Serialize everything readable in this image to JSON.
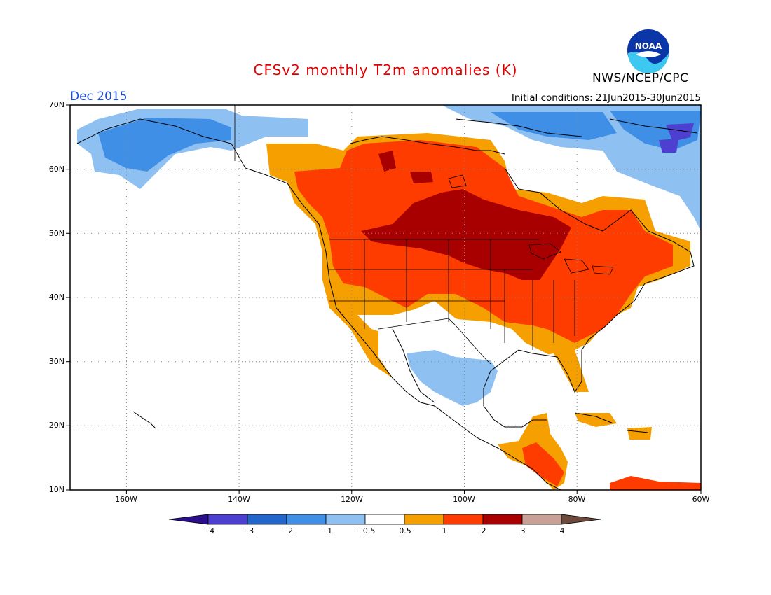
{
  "title": "CFSv2 monthly T2m anomalies (K)",
  "valid_month": "Dec 2015",
  "initial_conditions": "Initial conditions: 21Jun2015-30Jun2015",
  "agency": "NWS/NCEP/CPC",
  "logo_text": "NOAA",
  "map": {
    "region": "North America",
    "lon_range_deg": [
      -172,
      -60
    ],
    "lat_range_deg": [
      10,
      70
    ],
    "lat_ticks": [
      "70N",
      "60N",
      "50N",
      "40N",
      "30N",
      "20N",
      "10N"
    ],
    "lon_ticks": [
      "160W",
      "140W",
      "120W",
      "100W",
      "80W",
      "60W"
    ],
    "gridlines": "dotted"
  },
  "colorbar": {
    "labels": [
      "−4",
      "−3",
      "−2",
      "−1",
      "−0.5",
      "0.5",
      "1",
      "2",
      "3",
      "4"
    ],
    "colors": [
      "#2b0e8c",
      "#4d3fcf",
      "#2266cc",
      "#3f8fe6",
      "#8fc0f2",
      "#ffffff",
      "#f5a000",
      "#ff3c00",
      "#a80000",
      "#c9a095",
      "#6e4a3c"
    ]
  },
  "anomaly_regions": [
    {
      "area": "Alaska / northwest Canada",
      "category": "-1 to -0.5 / -2 to -1",
      "color": "#8fc0f2"
    },
    {
      "area": "Labrador / Baffin",
      "category": "-3 to -1",
      "color": "#3f8fe6"
    },
    {
      "area": "Northern Mexico",
      "category": "-1 to -0.5",
      "color": "#8fc0f2"
    },
    {
      "area": "Western/central Canada and US",
      "category": "1 to 2",
      "color": "#ff3c00"
    },
    {
      "area": "Northern Plains / central Canada",
      "category": "2 to 3",
      "color": "#a80000"
    },
    {
      "area": "US Southwest / Southeast fringe",
      "category": "0.5 to 1",
      "color": "#f5a000"
    },
    {
      "area": "Central America / Caribbean",
      "category": "0.5 to 2",
      "color": "#f5a000"
    }
  ]
}
